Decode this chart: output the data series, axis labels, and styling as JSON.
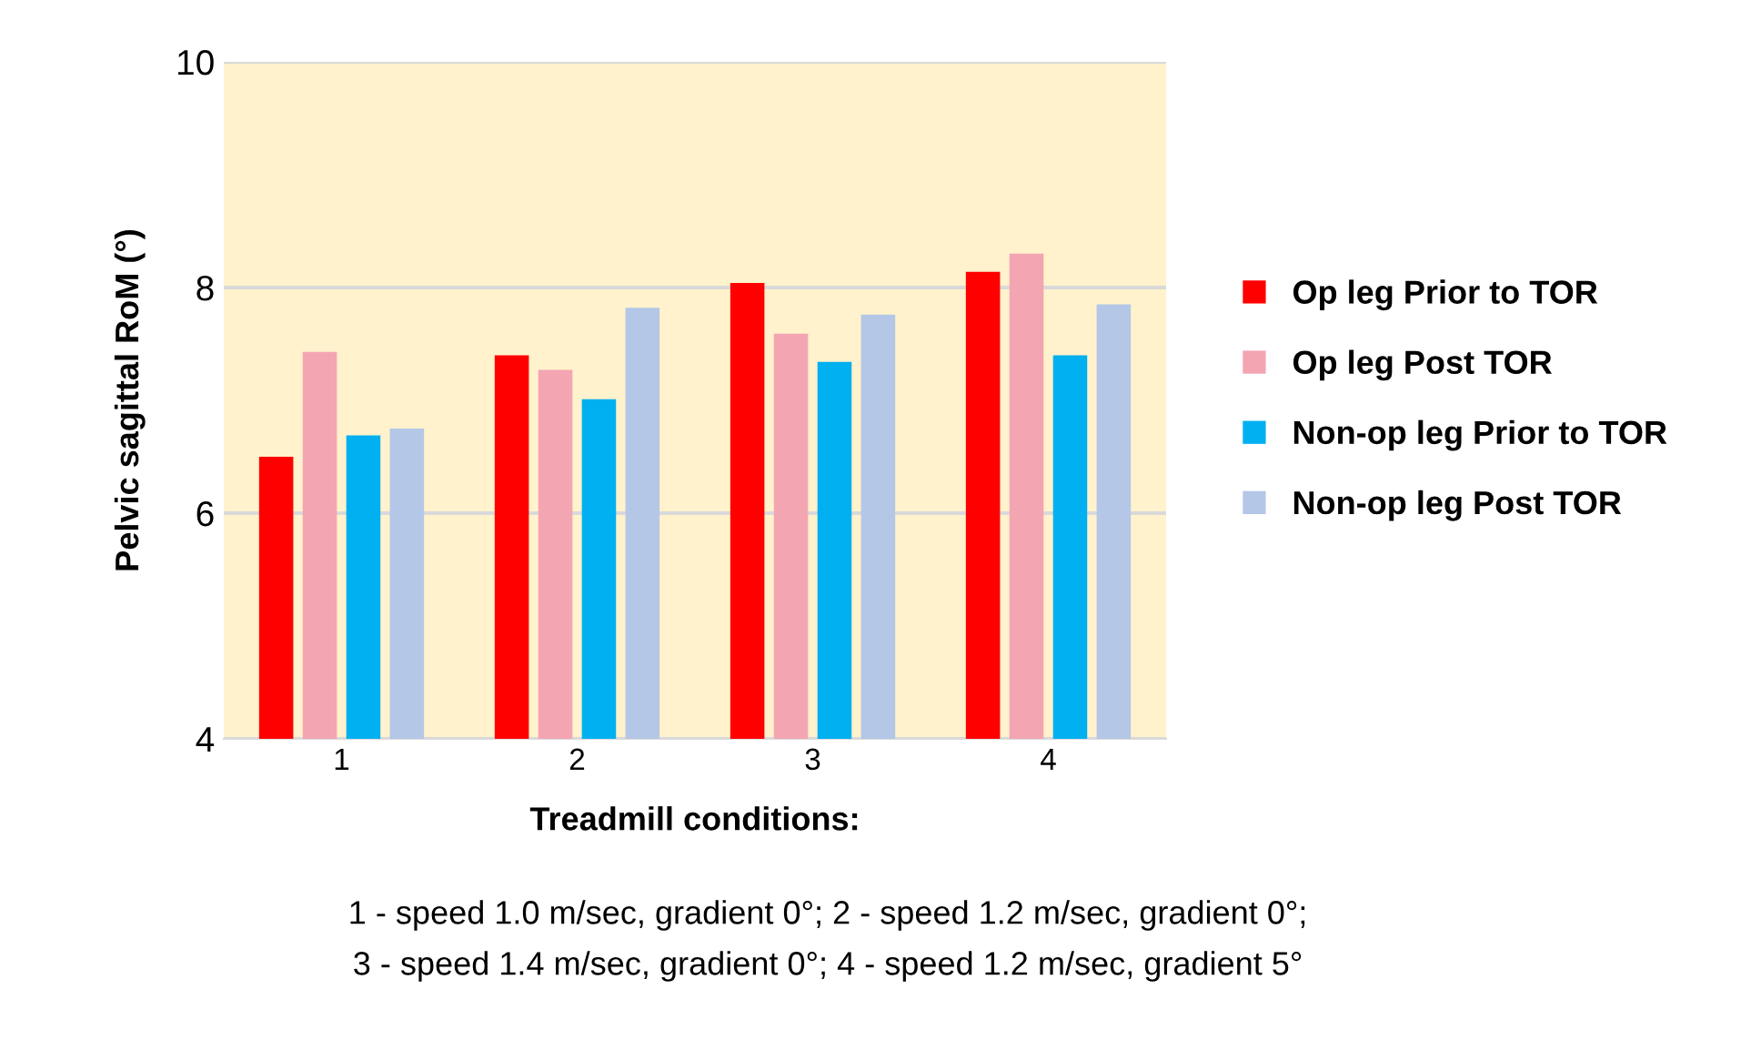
{
  "chart_data": {
    "type": "bar",
    "xlabel": "Treadmill conditions:",
    "ylabel": "Pelvic sagittal RoM (°)",
    "categories": [
      "1",
      "2",
      "3",
      "4"
    ],
    "series": [
      {
        "name": "Op leg Prior to TOR",
        "color": "#ff0000",
        "values": [
          6.5,
          7.4,
          8.04,
          8.14
        ]
      },
      {
        "name": "Op leg Post TOR",
        "color": "#f4a5b2",
        "values": [
          7.43,
          7.27,
          7.59,
          8.3
        ]
      },
      {
        "name": "Non-op leg Prior to TOR",
        "color": "#00b0f0",
        "values": [
          6.69,
          7.01,
          7.34,
          7.4
        ]
      },
      {
        "name": "Non-op leg Post TOR",
        "color": "#b4c7e7",
        "values": [
          6.75,
          7.82,
          7.76,
          7.85
        ]
      }
    ],
    "ylim": [
      4,
      10
    ],
    "yticks": [
      4,
      6,
      8,
      10
    ],
    "grid": "y",
    "legend": "right",
    "annotations": [
      "1 - speed 1.0 m/sec, gradient 0°; 2 - speed 1.2 m/sec, gradient 0°;",
      "3 - speed 1.4 m/sec, gradient 0°; 4 - speed 1.2 m/sec, gradient 5°"
    ]
  }
}
